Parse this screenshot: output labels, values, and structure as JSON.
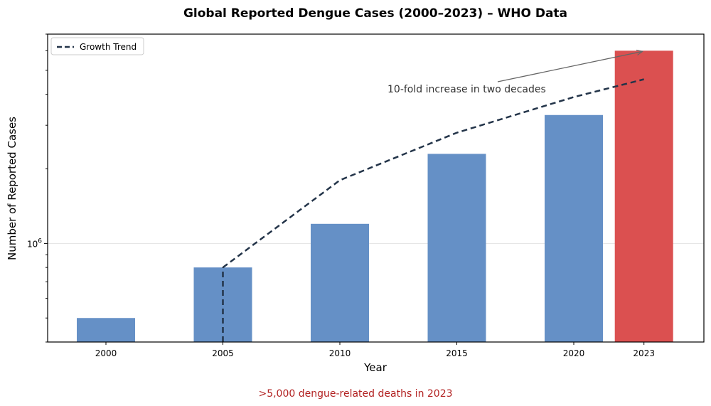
{
  "chart_data": {
    "type": "bar",
    "title": "Global Reported Dengue Cases (2000–2023) – WHO Data",
    "xlabel": "Year",
    "ylabel": "Number of Reported Cases",
    "yscale": "log",
    "ylim": [
      400000,
      7000000
    ],
    "categories": [
      "2000",
      "2005",
      "2010",
      "2015",
      "2020",
      "2023"
    ],
    "x": [
      2000,
      2005,
      2010,
      2015,
      2020,
      2023
    ],
    "series": [
      {
        "values": [
          500000,
          800000,
          1200000,
          2300000,
          3300000,
          6000000
        ]
      },
      {
        "name": "Growth Trend",
        "type": "line",
        "style": "dashed",
        "x": [
          2005,
          2010,
          2015,
          2020,
          2023
        ],
        "values": [
          800000,
          1800000,
          2800000,
          3900000,
          4600000
        ]
      }
    ],
    "highlight": {
      "category": "2023",
      "color": "#db5050"
    },
    "bar_color": "#6590c6",
    "trend_color": "#233449",
    "ytick_label_base": "10",
    "ytick_label_exp": "6",
    "grid": "horizontal at 10^6",
    "legend": {
      "position": "upper-left",
      "entries": [
        "Growth Trend"
      ]
    },
    "annotation": {
      "text": "10-fold increase in two decades",
      "points_to": {
        "x": 2023,
        "y": 6000000
      }
    }
  },
  "footnote": {
    "text": ">5,000 dengue-related deaths in 2023",
    "color": "#b22222"
  }
}
